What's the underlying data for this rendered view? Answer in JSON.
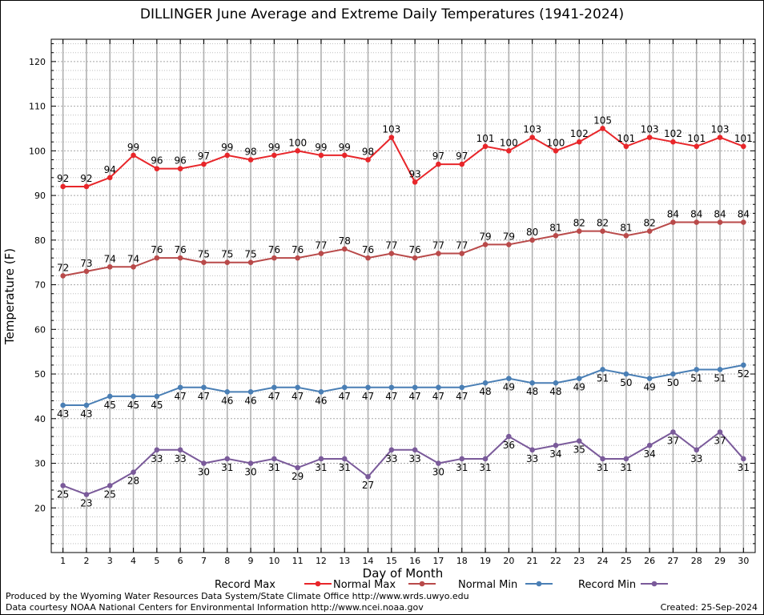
{
  "chart_data": {
    "type": "line",
    "title": "DILLINGER June Average and Extreme Daily Temperatures (1941-2024)",
    "xlabel": "Day of Month",
    "ylabel": "Temperature (F)",
    "xlim": [
      0.5,
      30.5
    ],
    "ylim": [
      10,
      125
    ],
    "y_ticks": [
      20,
      30,
      40,
      50,
      60,
      70,
      80,
      90,
      100,
      110,
      120
    ],
    "x": [
      1,
      2,
      3,
      4,
      5,
      6,
      7,
      8,
      9,
      10,
      11,
      12,
      13,
      14,
      15,
      16,
      17,
      18,
      19,
      20,
      21,
      22,
      23,
      24,
      25,
      26,
      27,
      28,
      29,
      30
    ],
    "grid": true,
    "legend_position": "bottom",
    "series": [
      {
        "name": "Record Max",
        "color": "#e8262a",
        "label_position": "above",
        "values": [
          92,
          92,
          94,
          99,
          96,
          96,
          97,
          99,
          98,
          99,
          100,
          99,
          99,
          98,
          103,
          93,
          97,
          97,
          101,
          100,
          103,
          100,
          102,
          105,
          101,
          103,
          102,
          101,
          103,
          101
        ]
      },
      {
        "name": "Normal Max",
        "color": "#b94a4a",
        "label_position": "above",
        "values": [
          72,
          73,
          74,
          74,
          76,
          76,
          75,
          75,
          75,
          76,
          76,
          77,
          78,
          76,
          77,
          76,
          77,
          77,
          79,
          79,
          80,
          81,
          82,
          82,
          81,
          82,
          84,
          84,
          84,
          84
        ]
      },
      {
        "name": "Normal Min",
        "color": "#4a7fb5",
        "label_position": "below",
        "values": [
          43,
          43,
          45,
          45,
          45,
          47,
          47,
          46,
          46,
          47,
          47,
          46,
          47,
          47,
          47,
          47,
          47,
          47,
          48,
          49,
          48,
          48,
          49,
          51,
          50,
          49,
          50,
          51,
          51,
          52
        ]
      },
      {
        "name": "Record Min",
        "color": "#7a5a9a",
        "label_position": "below",
        "values": [
          25,
          23,
          25,
          28,
          33,
          33,
          30,
          31,
          30,
          31,
          29,
          31,
          31,
          27,
          33,
          33,
          30,
          31,
          31,
          36,
          33,
          34,
          35,
          31,
          31,
          34,
          37,
          33,
          37,
          31
        ]
      }
    ]
  },
  "footer": {
    "produced_by": "Produced by the Wyoming Water Resources Data System/State Climate Office http://www.wrds.uwyo.edu",
    "data_courtesy": "Data courtesy NOAA National Centers for Environmental Information http://www.ncei.noaa.gov",
    "created": "Created:  25-Sep-2024"
  }
}
